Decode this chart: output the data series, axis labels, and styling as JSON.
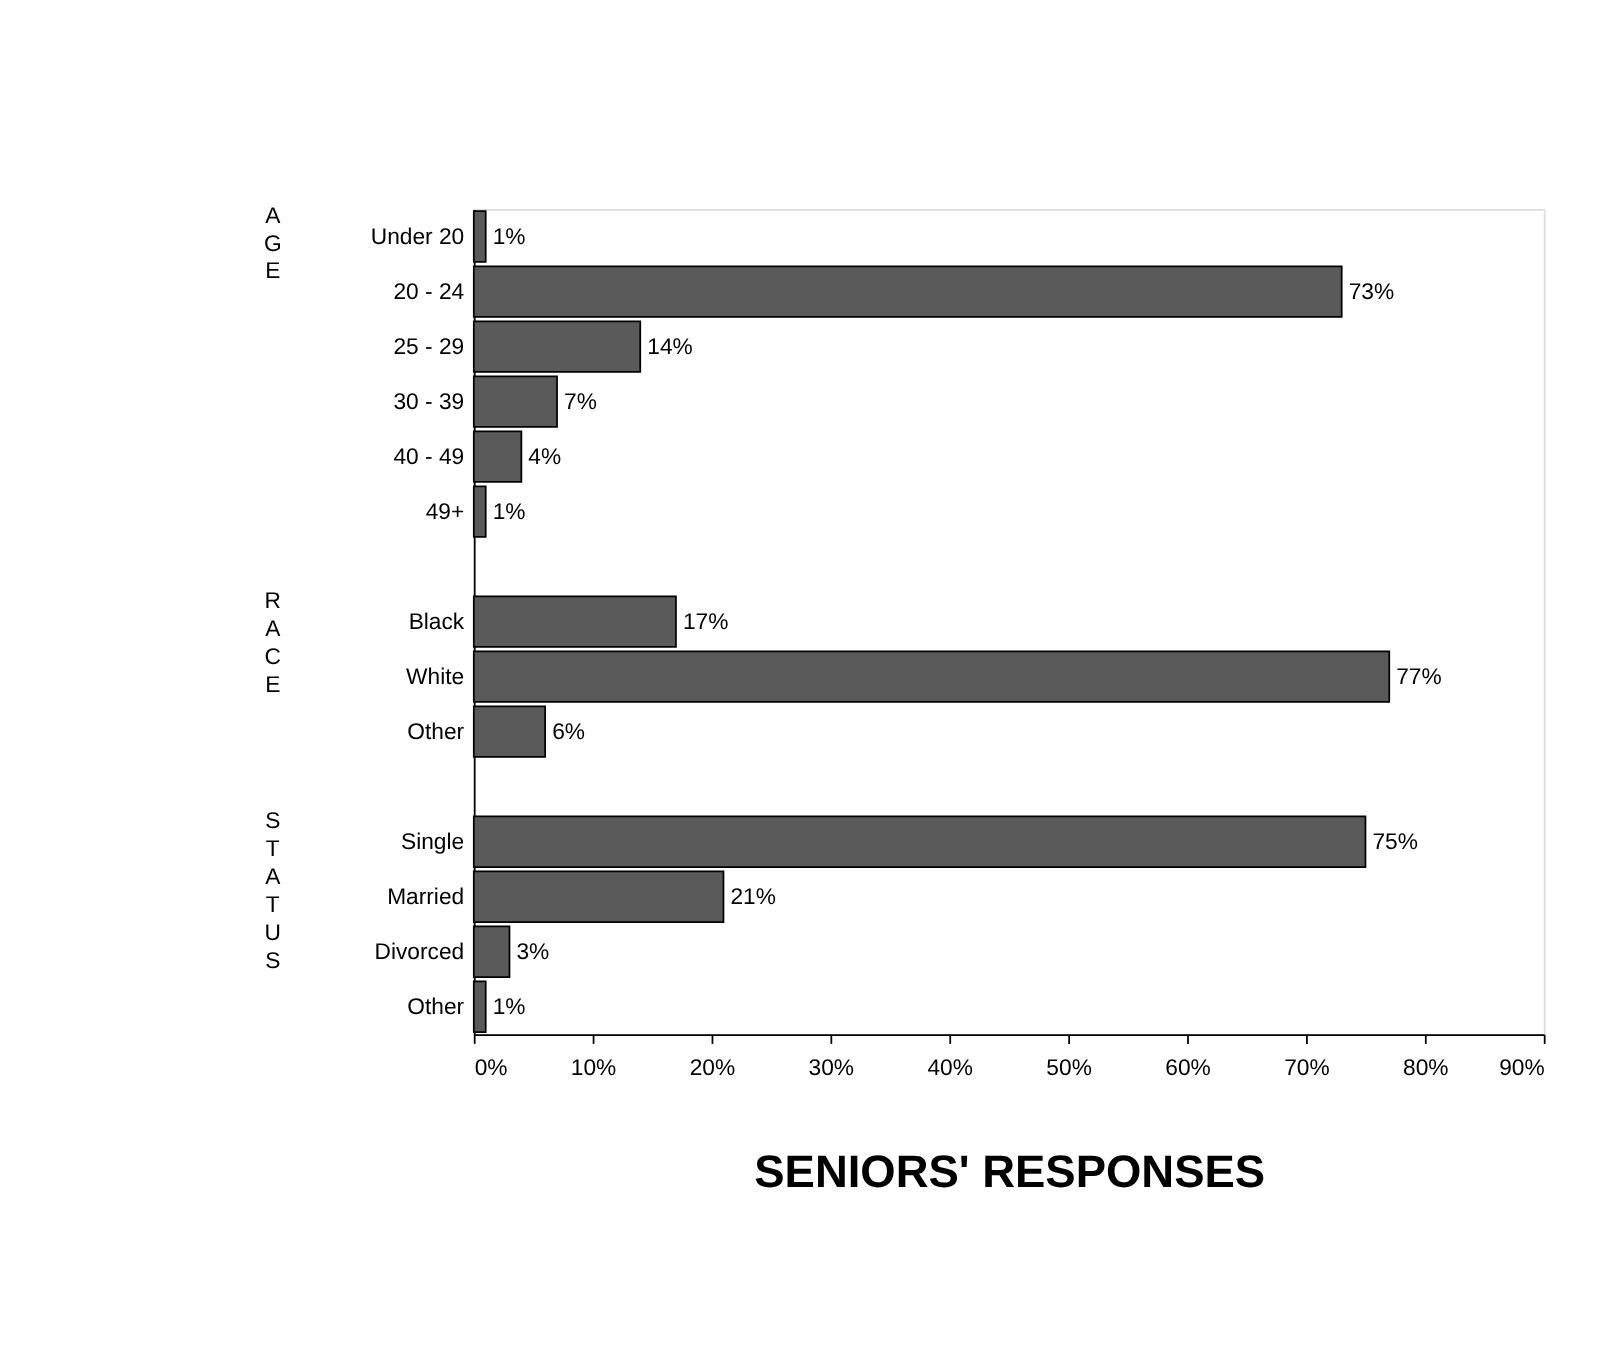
{
  "chart_data": {
    "type": "bar",
    "orientation": "horizontal",
    "xlabel": "SENIORS' RESPONSES",
    "categories": [
      "Under 20",
      "20  -  24",
      "25  -  29",
      "30  -  39",
      "40  -  49",
      "49+",
      null,
      "Black",
      "White",
      "Other",
      null,
      "Single",
      "Married",
      "Divorced",
      "Other"
    ],
    "values": [
      1,
      73,
      14,
      7,
      4,
      1,
      null,
      17,
      77,
      6,
      null,
      75,
      21,
      3,
      1
    ],
    "value_labels": [
      "1%",
      "73%",
      "14%",
      "7%",
      "4%",
      "1%",
      null,
      "17%",
      "77%",
      "6%",
      null,
      "75%",
      "21%",
      "3%",
      "1%"
    ],
    "color": "#5a5a5a",
    "xlim": [
      0,
      90
    ],
    "xticks": [
      {
        "value": 0,
        "label": "0%"
      },
      {
        "value": 10,
        "label": "10%"
      },
      {
        "value": 20,
        "label": "20%"
      },
      {
        "value": 30,
        "label": "30%"
      },
      {
        "value": 40,
        "label": "40%"
      },
      {
        "value": 50,
        "label": "50%"
      },
      {
        "value": 60,
        "label": "60%"
      },
      {
        "value": 70,
        "label": "70%"
      },
      {
        "value": 80,
        "label": "80%"
      },
      {
        "value": 90,
        "label": "90%"
      }
    ],
    "annotations": [
      "AGE",
      "RACE",
      "STATUS"
    ],
    "grid": false
  }
}
